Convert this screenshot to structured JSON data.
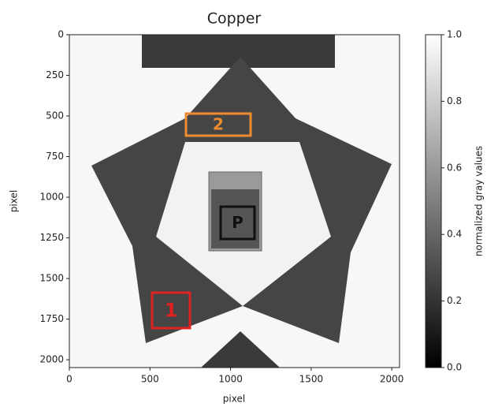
{
  "chart_data": {
    "type": "image",
    "title": "Copper",
    "x_label": "pixel",
    "y_label": "pixel",
    "xlim": [
      0,
      2048
    ],
    "ylim": [
      2048,
      0
    ],
    "xticks": [
      0,
      500,
      1000,
      1500,
      2000
    ],
    "yticks": [
      0,
      250,
      500,
      750,
      1000,
      1250,
      1500,
      1750,
      2000
    ],
    "colorbar": {
      "label": "normalized gray values",
      "clim": [
        0,
        1
      ],
      "ticks": [
        {
          "value": 0,
          "label": "0.0"
        },
        {
          "value": 0.2,
          "label": "0.2"
        },
        {
          "value": 0.4,
          "label": "0.4"
        },
        {
          "value": 0.6,
          "label": "0.6"
        },
        {
          "value": 0.8,
          "label": "0.8"
        },
        {
          "value": 1,
          "label": "1.0"
        }
      ]
    },
    "annotations": [
      {
        "text": "1",
        "color": "#e02222"
      },
      {
        "text": "2",
        "color": "#ee8a30"
      },
      {
        "text": "P",
        "color": "#111111"
      }
    ]
  }
}
